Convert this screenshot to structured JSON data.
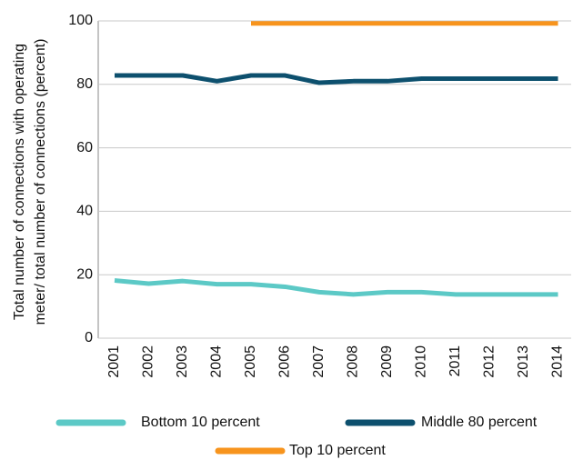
{
  "chart_data": {
    "type": "line",
    "ylabel": [
      "Total number of connections with operating",
      "meter/ total number of  connections (percent)"
    ],
    "categories": [
      "2001",
      "2002",
      "2003",
      "2004",
      "2005",
      "2006",
      "2007",
      "2008",
      "2009",
      "2010",
      "2011",
      "2012",
      "2013",
      "2014"
    ],
    "series": [
      {
        "name": "Bottom 10 percent",
        "color": "#5cc9c6",
        "values": [
          18.2,
          17.2,
          18,
          17,
          17,
          16.2,
          14.5,
          13.8,
          14.5,
          14.5,
          13.8,
          13.8,
          13.8,
          13.8
        ]
      },
      {
        "name": "Middle 80 percent",
        "color": "#0d506e",
        "values": [
          82.8,
          82.8,
          82.8,
          81,
          82.8,
          82.8,
          80.5,
          81,
          81,
          81.8,
          81.8,
          81.8,
          81.8,
          81.8
        ]
      },
      {
        "name": "Top 10 percent",
        "color": "#f7941d",
        "values": [
          null,
          null,
          null,
          null,
          99.2,
          99.2,
          99.2,
          99.2,
          99.2,
          99.2,
          99.2,
          99.2,
          99.2,
          99.2
        ]
      }
    ],
    "ylim": [
      0,
      100
    ],
    "yticks": [
      0,
      20,
      40,
      60,
      80,
      100
    ],
    "grid": true
  }
}
